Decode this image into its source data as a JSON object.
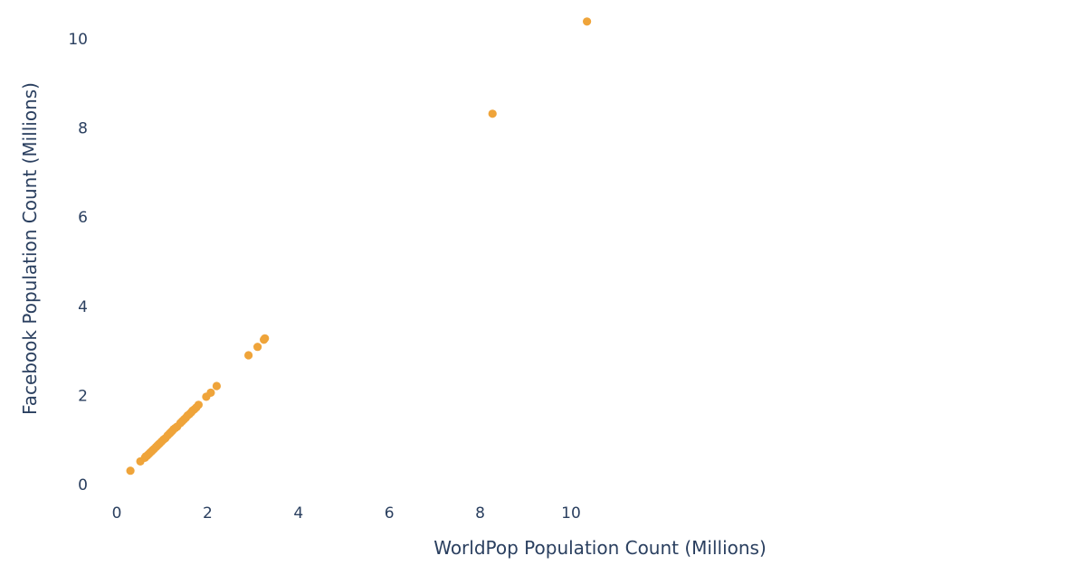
{
  "chart_data": {
    "type": "scatter",
    "title": "",
    "xlabel": "WorldPop Population Count (Millions)",
    "ylabel": "Facebook Population Count (Millions)",
    "xlim": [
      0,
      10.4
    ],
    "ylim": [
      0,
      10.4
    ],
    "xticks": [
      0,
      2,
      4,
      6,
      8,
      10
    ],
    "yticks": [
      0,
      2,
      4,
      6,
      8,
      10
    ],
    "grid": false,
    "marker_color": "#EFA43A",
    "series": [
      {
        "points": [
          [
            0.3,
            0.31
          ],
          [
            0.52,
            0.52
          ],
          [
            0.62,
            0.6
          ],
          [
            0.64,
            0.63
          ],
          [
            0.67,
            0.65
          ],
          [
            0.7,
            0.68
          ],
          [
            0.73,
            0.71
          ],
          [
            0.76,
            0.74
          ],
          [
            0.79,
            0.77
          ],
          [
            0.82,
            0.8
          ],
          [
            0.86,
            0.84
          ],
          [
            0.89,
            0.87
          ],
          [
            0.92,
            0.9
          ],
          [
            0.95,
            0.93
          ],
          [
            0.99,
            0.97
          ],
          [
            1.03,
            1.01
          ],
          [
            1.07,
            1.04
          ],
          [
            1.12,
            1.1
          ],
          [
            1.16,
            1.14
          ],
          [
            1.19,
            1.17
          ],
          [
            1.22,
            1.2
          ],
          [
            1.25,
            1.24
          ],
          [
            1.29,
            1.27
          ],
          [
            1.33,
            1.3
          ],
          [
            1.4,
            1.38
          ],
          [
            1.44,
            1.42
          ],
          [
            1.48,
            1.46
          ],
          [
            1.52,
            1.5
          ],
          [
            1.56,
            1.55
          ],
          [
            1.6,
            1.58
          ],
          [
            1.64,
            1.62
          ],
          [
            1.67,
            1.66
          ],
          [
            1.71,
            1.69
          ],
          [
            1.75,
            1.73
          ],
          [
            1.8,
            1.79
          ],
          [
            1.97,
            1.97
          ],
          [
            2.07,
            2.06
          ],
          [
            2.2,
            2.21
          ],
          [
            2.9,
            2.9
          ],
          [
            3.1,
            3.09
          ],
          [
            3.24,
            3.25
          ],
          [
            3.26,
            3.28
          ],
          [
            8.27,
            8.32
          ],
          [
            10.35,
            10.39
          ]
        ]
      }
    ]
  }
}
